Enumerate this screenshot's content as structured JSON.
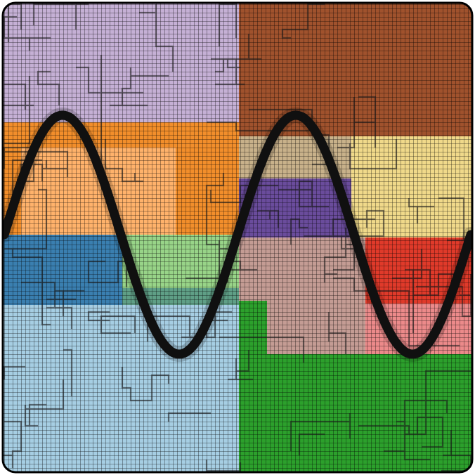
{
  "image": {
    "description_of_visible_content": "",
    "palette": {
      "lavender": "#c5b0d5",
      "brown": "#a0522d",
      "orange": "#ffb26b",
      "dark_orange": "#f28e2b",
      "tan": "#d2b48c",
      "khaki": "#f0d98a",
      "purple": "#6a4c9c",
      "steel_blue": "#3a7fb0",
      "light_green": "#98d488",
      "teal_green": "#5f9f86",
      "rose_tan": "#c49c94",
      "red": "#e03a2a",
      "pink": "#ec8a8a",
      "light_blue": "#a6cee3",
      "green": "#2ca02c",
      "grid_line": "#000000",
      "wave": "#111111"
    },
    "regions": [
      {
        "name": "lavender",
        "color": "#c5b0d5"
      },
      {
        "name": "brown",
        "color": "#a0522d"
      },
      {
        "name": "orange",
        "color": "#ffb26b"
      },
      {
        "name": "dark_orange",
        "color": "#f28e2b"
      },
      {
        "name": "tan",
        "color": "#c8b18a"
      },
      {
        "name": "khaki",
        "color": "#f0d98a"
      },
      {
        "name": "purple",
        "color": "#6a4c9c"
      },
      {
        "name": "steel_blue",
        "color": "#3a7fb0"
      },
      {
        "name": "light_green",
        "color": "#98d488"
      },
      {
        "name": "teal_green",
        "color": "#5f9f86"
      },
      {
        "name": "rose_tan",
        "color": "#c49c94"
      },
      {
        "name": "red",
        "color": "#e03a2a"
      },
      {
        "name": "pink",
        "color": "#ec8a8a"
      },
      {
        "name": "light_blue",
        "color": "#a6cee3"
      },
      {
        "name": "green",
        "color": "#2ca02c"
      }
    ],
    "wave": {
      "type": "sine",
      "periods": 2
    }
  }
}
